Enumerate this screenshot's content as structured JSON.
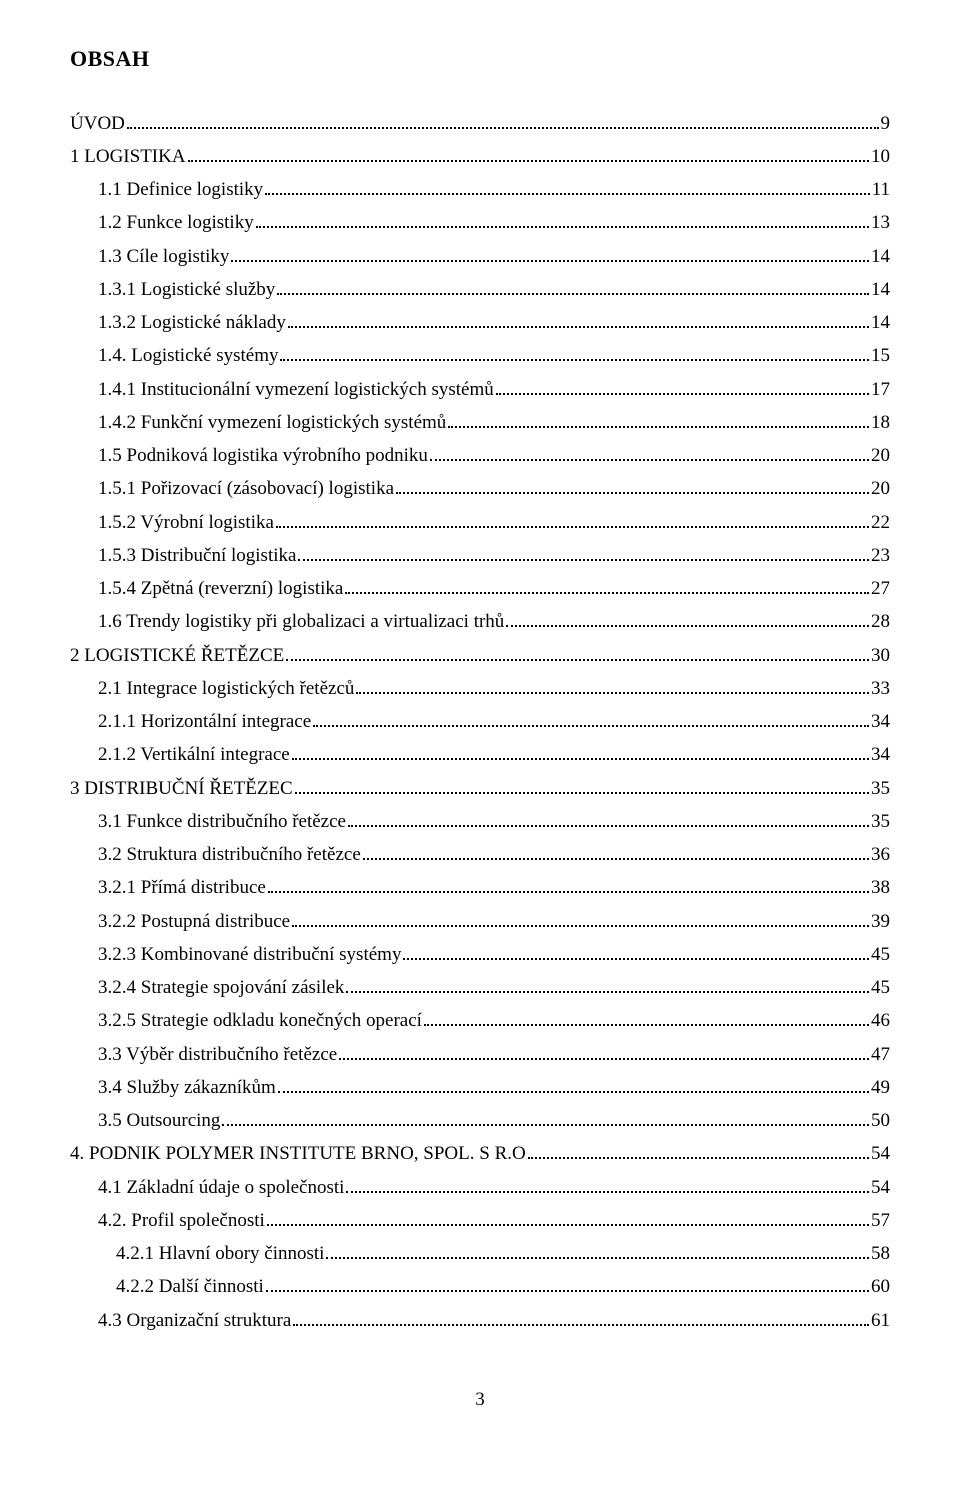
{
  "title": "OBSAH",
  "page_number": "3",
  "entries": [
    {
      "label": "ÚVOD",
      "page": "9",
      "indent": 0
    },
    {
      "label": "1 LOGISTIKA",
      "page": "10",
      "indent": 0
    },
    {
      "label": "1.1 Definice logistiky",
      "page": "11",
      "indent": 2
    },
    {
      "label": "1.2 Funkce logistiky",
      "page": "13",
      "indent": 2
    },
    {
      "label": "1.3 Cíle logistiky",
      "page": "14",
      "indent": 2
    },
    {
      "label": "1.3.1 Logistické služby",
      "page": "14",
      "indent": 2
    },
    {
      "label": "1.3.2 Logistické náklady",
      "page": "14",
      "indent": 2
    },
    {
      "label": "1.4. Logistické systémy",
      "page": "15",
      "indent": 2
    },
    {
      "label": "1.4.1 Institucionální vymezení logistických systémů",
      "page": "17",
      "indent": 2
    },
    {
      "label": "1.4.2 Funkční vymezení logistických systémů",
      "page": "18",
      "indent": 2
    },
    {
      "label": "1.5 Podniková logistika výrobního podniku",
      "page": "20",
      "indent": 2
    },
    {
      "label": "1.5.1 Pořizovací (zásobovací) logistika",
      "page": "20",
      "indent": 2
    },
    {
      "label": "1.5.2 Výrobní logistika",
      "page": "22",
      "indent": 2
    },
    {
      "label": "1.5.3 Distribuční logistika",
      "page": "23",
      "indent": 2
    },
    {
      "label": "1.5.4 Zpětná (reverzní) logistika",
      "page": "27",
      "indent": 2
    },
    {
      "label": "1.6 Trendy logistiky při globalizaci a virtualizaci trhů",
      "page": "28",
      "indent": 2
    },
    {
      "label": "2 LOGISTICKÉ ŘETĚZCE",
      "page": "30",
      "indent": 0
    },
    {
      "label": "2.1 Integrace logistických řetězců",
      "page": "33",
      "indent": 2
    },
    {
      "label": "2.1.1 Horizontální integrace",
      "page": "34",
      "indent": 2
    },
    {
      "label": "2.1.2 Vertikální integrace",
      "page": "34",
      "indent": 2
    },
    {
      "label": "3 DISTRIBUČNÍ ŘETĚZEC",
      "page": "35",
      "indent": 0
    },
    {
      "label": "3.1 Funkce distribučního řetězce",
      "page": "35",
      "indent": 2
    },
    {
      "label": "3.2 Struktura distribučního řetězce",
      "page": "36",
      "indent": 2
    },
    {
      "label": "3.2.1  Přímá distribuce",
      "page": "38",
      "indent": 2
    },
    {
      "label": "3.2.2  Postupná distribuce",
      "page": "39",
      "indent": 2
    },
    {
      "label": "3.2.3  Kombinované distribuční systémy",
      "page": "45",
      "indent": 2
    },
    {
      "label": "3.2.4  Strategie spojování zásilek",
      "page": "45",
      "indent": 2
    },
    {
      "label": "3.2.5  Strategie odkladu konečných operací",
      "page": "46",
      "indent": 2
    },
    {
      "label": "3.3 Výběr distribučního řetězce",
      "page": "47",
      "indent": 2
    },
    {
      "label": "3.4 Služby zákazníkům",
      "page": "49",
      "indent": 2
    },
    {
      "label": "3.5 Outsourcing",
      "page": "50",
      "indent": 2
    },
    {
      "label": "4.  PODNIK POLYMER INSTITUTE BRNO, SPOL. S R.O",
      "page": "54",
      "indent": 0
    },
    {
      "label": "4.1 Základní údaje o společnosti",
      "page": "54",
      "indent": 2
    },
    {
      "label": "4.2. Profil společnosti",
      "page": "57",
      "indent": 2
    },
    {
      "label": "4.2.1 Hlavní obory činnosti",
      "page": "58",
      "indent": 3
    },
    {
      "label": "4.2.2 Další činnosti",
      "page": "60",
      "indent": 3
    },
    {
      "label": "4.3 Organizační struktura",
      "page": "61",
      "indent": 2
    }
  ]
}
